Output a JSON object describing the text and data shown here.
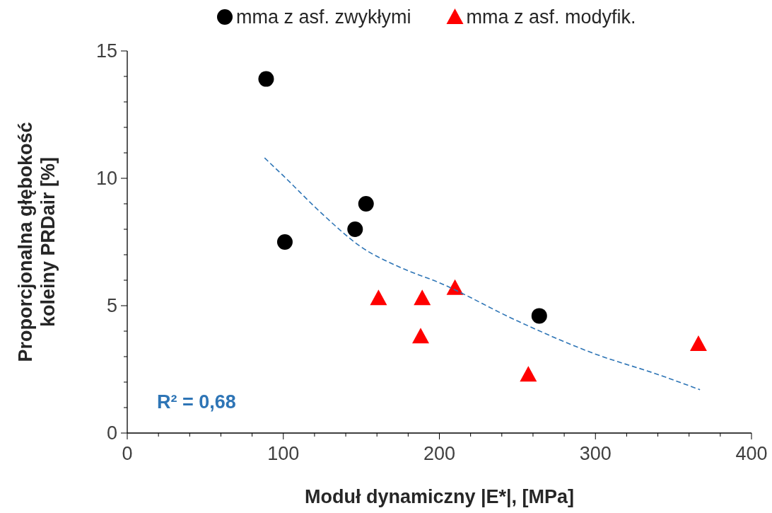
{
  "chart_data": {
    "type": "scatter",
    "xlabel": "Moduł dynamiczny |E*|, [MPa]",
    "ylabel": "Proporcjonalna głębokość\nkoleiny PRDair [%]",
    "xlim": [
      0,
      400
    ],
    "xticks": [
      0,
      100,
      200,
      300,
      400
    ],
    "ylim": [
      0,
      15
    ],
    "yticks": [
      0,
      5,
      10,
      15
    ],
    "grid": false,
    "legend": "top",
    "series": [
      {
        "name": "mma z asf. zwykłymi",
        "color": "#000000",
        "marker": "circle",
        "x": [
          89,
          101,
          146,
          153,
          264
        ],
        "values": [
          13.9,
          7.5,
          8.0,
          9.0,
          4.6
        ]
      },
      {
        "name": "mma z asf. modyfik.",
        "color": "#ff0000",
        "marker": "triangle",
        "x": [
          161,
          188,
          189,
          210,
          257,
          366
        ],
        "values": [
          5.3,
          3.8,
          5.3,
          5.7,
          2.3,
          3.5
        ]
      },
      {
        "type": "line",
        "color": "#2e75b6",
        "line_style": "dashed",
        "marker": "none",
        "x": [
          88,
          100,
          125,
          150,
          175,
          200,
          250,
          300,
          340,
          367
        ],
        "values": [
          10.8,
          10.1,
          8.6,
          7.3,
          6.5,
          5.9,
          4.4,
          3.1,
          2.3,
          1.7
        ]
      }
    ],
    "annotations": [
      "R² = 0,68"
    ]
  }
}
